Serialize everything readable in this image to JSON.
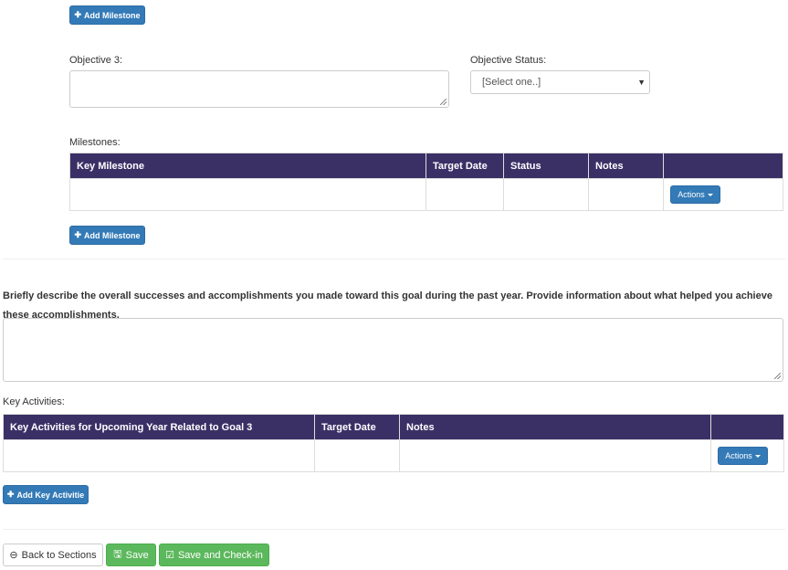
{
  "objective": {
    "add_milestone_top": "Add Milestone",
    "label": "Objective 3:",
    "value": "",
    "status_label": "Objective Status:",
    "status_selected": "[Select one..]",
    "milestones_label": "Milestones:",
    "milestones_columns": [
      "Key Milestone",
      "Target Date",
      "Status",
      "Notes",
      ""
    ],
    "actions_label": "Actions",
    "add_milestone": "Add Milestone"
  },
  "accomplishments": {
    "prompt": "Briefly describe the overall successes and accomplishments you made toward this goal during the past year. Provide information about what helped you achieve these accomplishments.",
    "value": ""
  },
  "key_activities": {
    "label": "Key Activities:",
    "columns": [
      "Key Activities for Upcoming Year Related to Goal 3",
      "Target Date",
      "Notes",
      ""
    ],
    "actions_label": "Actions",
    "add_label": "Add Key Activitie"
  },
  "footer": {
    "back": "Back to Sections",
    "save": "Save",
    "save_checkin": "Save and Check-in"
  },
  "colors": {
    "table_header": "#3b3066",
    "primary": "#337ab7",
    "success": "#5cb85c"
  }
}
